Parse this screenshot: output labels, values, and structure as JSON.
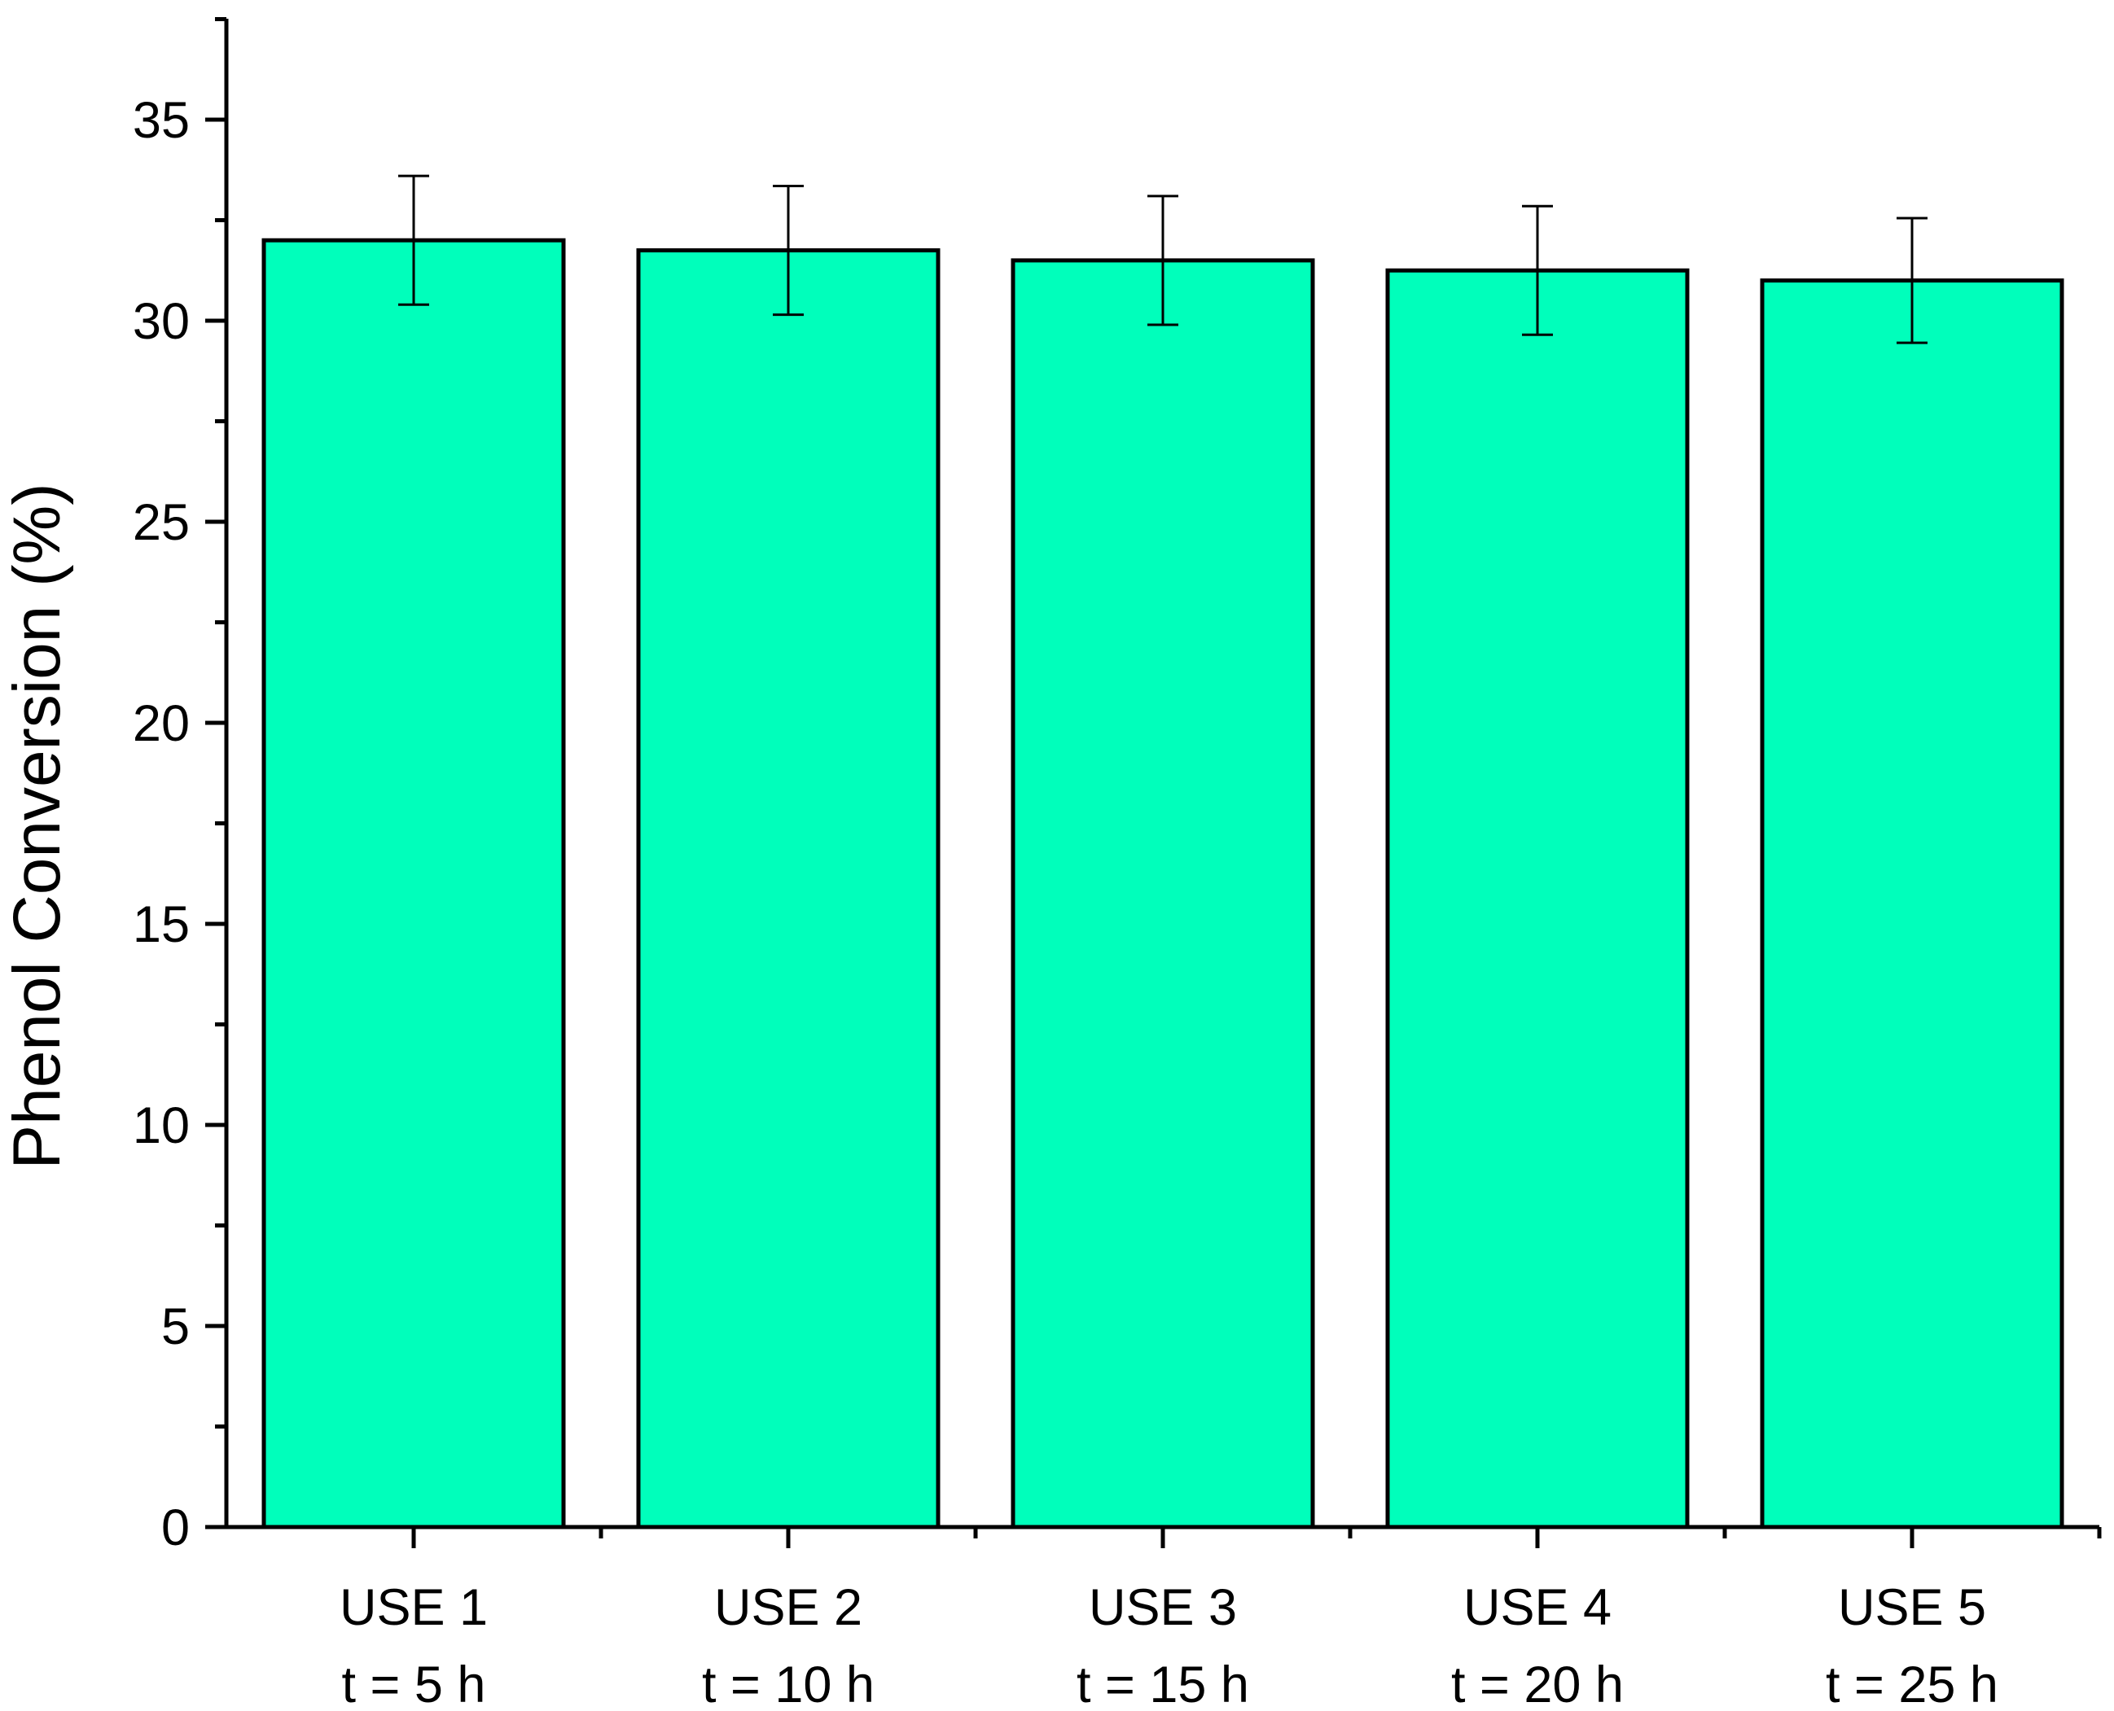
{
  "chart_data": {
    "type": "bar",
    "title": "",
    "xlabel": "",
    "ylabel": "Phenol Conversion (%)",
    "categories": [
      [
        "USE 1",
        "t = 5 h"
      ],
      [
        "USE 2",
        "t = 10 h"
      ],
      [
        "USE 3",
        "t = 15 h"
      ],
      [
        "USE 4",
        "t = 20 h"
      ],
      [
        "USE 5",
        "t = 25 h"
      ]
    ],
    "values": [
      32.0,
      31.75,
      31.5,
      31.25,
      31.0
    ],
    "error": [
      1.6,
      1.6,
      1.6,
      1.6,
      1.55
    ],
    "ylim": [
      0,
      37.5
    ],
    "yticks": [
      0,
      5,
      10,
      15,
      20,
      25,
      30,
      35
    ],
    "yminor_step": 2.5,
    "grid": false,
    "bar_color": "#00FFBB",
    "bar_edge_color": "#000000"
  }
}
